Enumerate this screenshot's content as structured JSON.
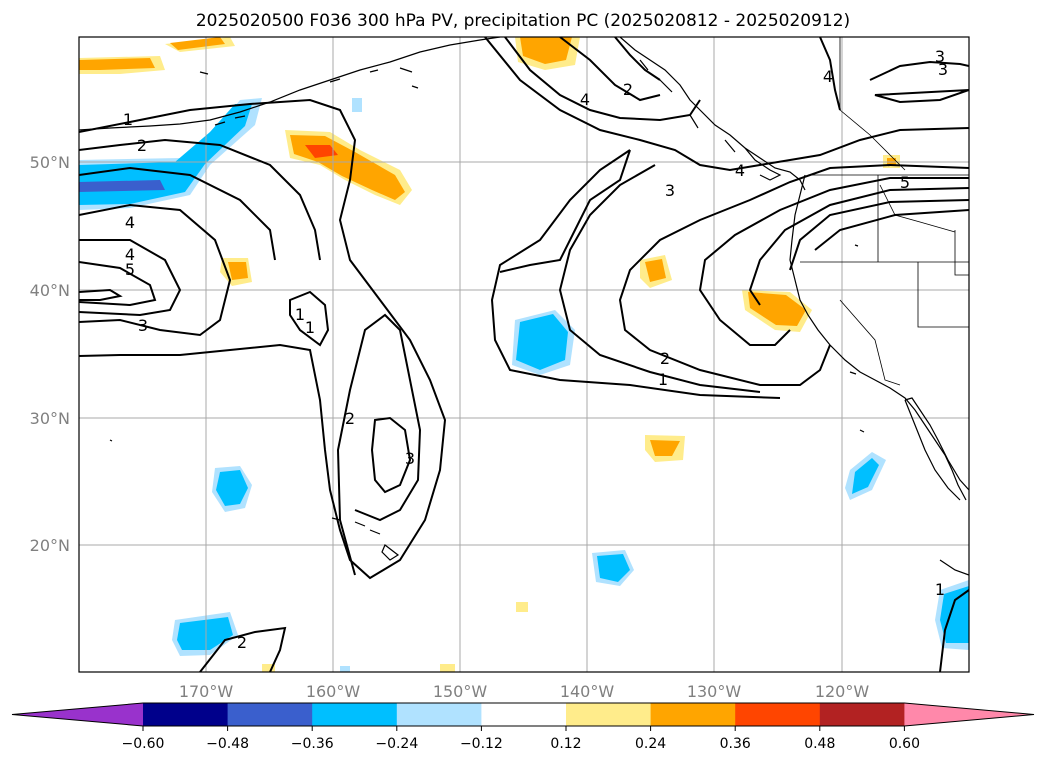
{
  "title": "2025020500 F036 300 hPa PV, precipitation PC (2025020812 - 2025020912)",
  "lat_ticks": [
    "50°N",
    "40°N",
    "30°N",
    "20°N"
  ],
  "lon_ticks": [
    "170°W",
    "160°W",
    "150°W",
    "140°W",
    "130°W",
    "120°W"
  ],
  "pv_contour_labels": [
    "1",
    "2",
    "4",
    "4",
    "5",
    "3",
    "1",
    "2",
    "3",
    "2",
    "4",
    "2",
    "3",
    "1",
    "2",
    "4",
    "5",
    "3",
    "4",
    "3",
    "1",
    "1"
  ],
  "colorbar": {
    "ticks": [
      "−0.60",
      "−0.48",
      "−0.36",
      "−0.24",
      "−0.12",
      "0.12",
      "0.24",
      "0.36",
      "0.48",
      "0.60"
    ],
    "colors": [
      "#9932cc",
      "#00008b",
      "#3a5fcd",
      "#00bfff",
      "#b0e2ff",
      "#ffffff",
      "#ffec8b",
      "#ffa500",
      "#ff4500",
      "#b22222",
      "#ff88aa"
    ]
  },
  "precip_colors": {
    "pos_light": "#ffec8b",
    "pos_mid": "#ffa500",
    "pos_strong": "#ff4500",
    "neg_light": "#b0e2ff",
    "neg_mid": "#00bfff",
    "neg_strong": "#3a5fcd"
  }
}
